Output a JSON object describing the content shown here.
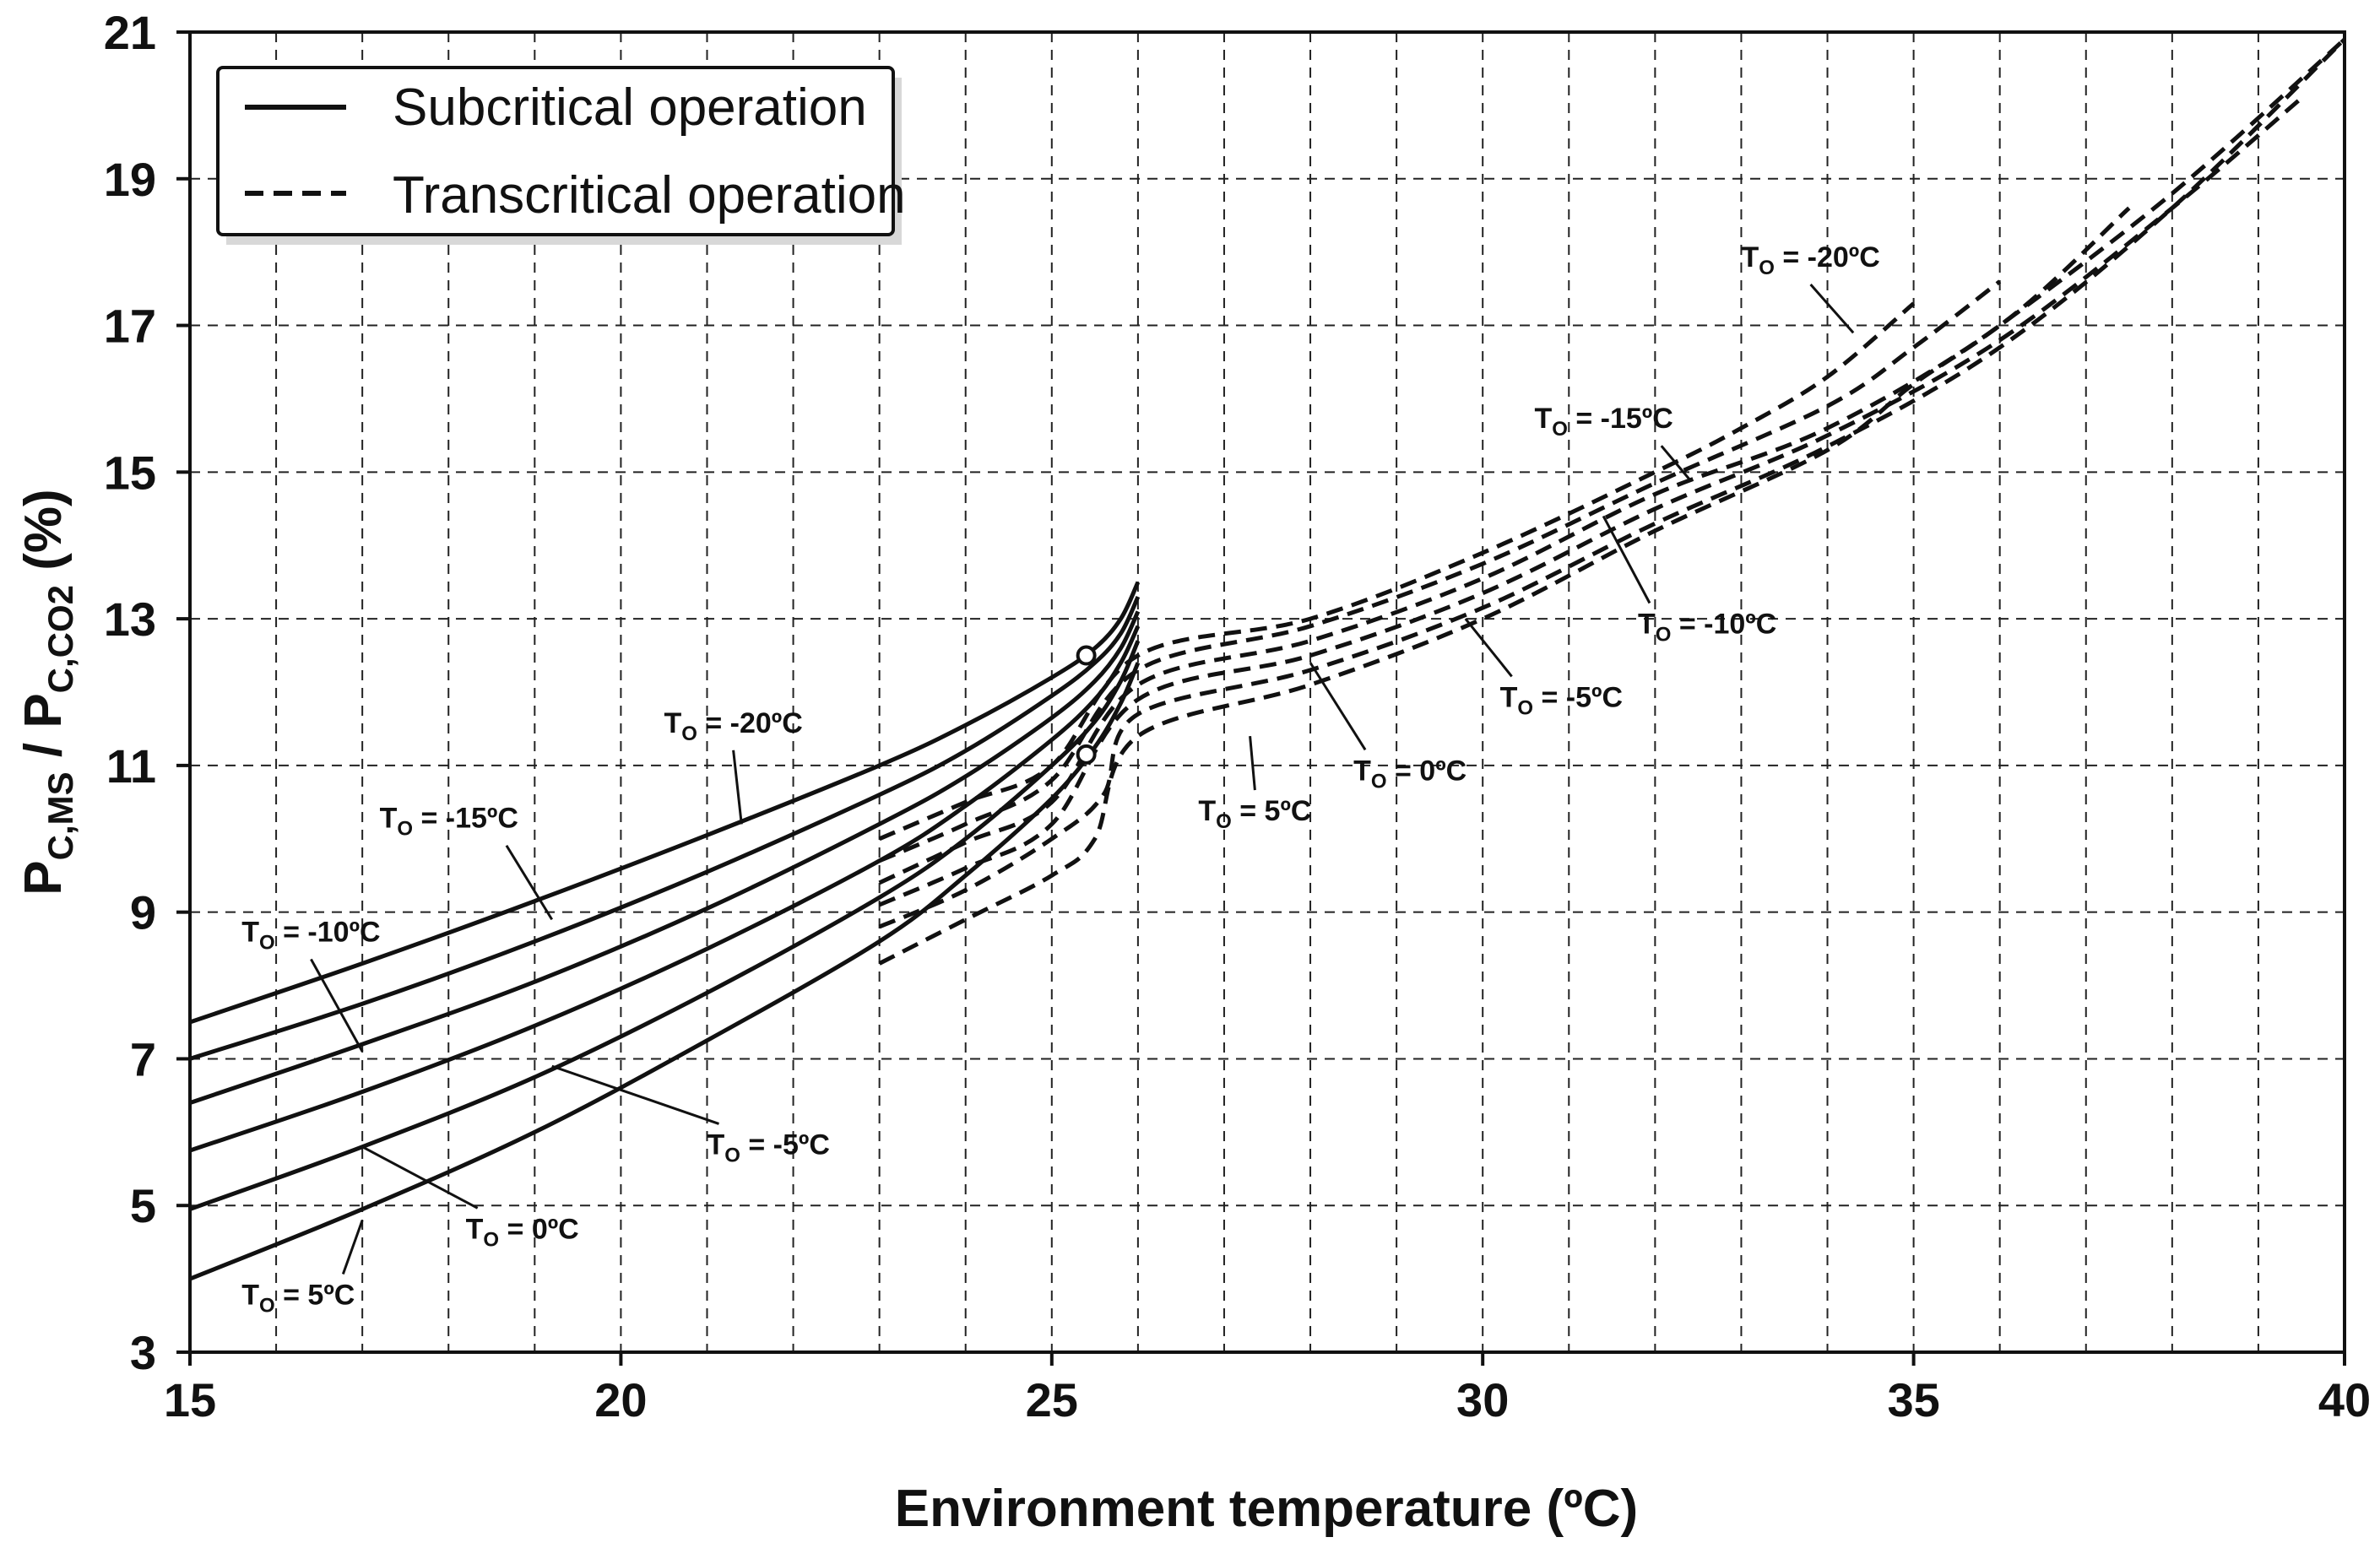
{
  "chart_data": {
    "type": "line",
    "title": "",
    "xlabel": "Environment temperature (ºC)",
    "ylabel": "P_C,MS / P_C,CO2 (%)",
    "ylabel_parts": {
      "p1": "P",
      "sub1": "C,MS",
      "mid": " / P",
      "sub2": "C,CO2",
      "unit": " (%)"
    },
    "xlim": [
      15,
      40
    ],
    "ylim": [
      3,
      21
    ],
    "xticks": [
      15,
      20,
      25,
      30,
      35,
      40
    ],
    "yticks": [
      3,
      5,
      7,
      9,
      11,
      13,
      15,
      17,
      19,
      21
    ],
    "grid": {
      "x_step": 1,
      "y_step": 2,
      "style": "dashed"
    },
    "legend": {
      "position": "top-left",
      "entries": [
        {
          "label": "Subcritical operation",
          "style": "solid"
        },
        {
          "label": "Transcritical operation",
          "style": "dashed"
        }
      ]
    },
    "series": [
      {
        "name": "Subcritical T_O = -20ºC",
        "style": "solid",
        "x": [
          15,
          17,
          19,
          21,
          23,
          24,
          25,
          25.5,
          25.8,
          26
        ],
        "y": [
          7.5,
          8.3,
          9.15,
          10.05,
          11.0,
          11.55,
          12.2,
          12.6,
          13.0,
          13.5
        ]
      },
      {
        "name": "Subcritical T_O = -15ºC",
        "style": "solid",
        "x": [
          15,
          17,
          19,
          21,
          23,
          24,
          25,
          25.5,
          25.8,
          26
        ],
        "y": [
          7.0,
          7.75,
          8.6,
          9.55,
          10.6,
          11.2,
          11.95,
          12.4,
          12.8,
          13.3
        ]
      },
      {
        "name": "Subcritical T_O = -10ºC",
        "style": "solid",
        "x": [
          15,
          17,
          19,
          21,
          23,
          24,
          25,
          25.5,
          25.8,
          26
        ],
        "y": [
          6.4,
          7.2,
          8.05,
          9.05,
          10.2,
          10.85,
          11.65,
          12.15,
          12.6,
          13.1
        ]
      },
      {
        "name": "Subcritical T_O = -5ºC",
        "style": "solid",
        "x": [
          15,
          17,
          19,
          21,
          23,
          24,
          25,
          25.5,
          25.8,
          26
        ],
        "y": [
          5.75,
          6.55,
          7.45,
          8.5,
          9.7,
          10.45,
          11.35,
          11.9,
          12.4,
          12.9
        ]
      },
      {
        "name": "Subcritical T_O = 0ºC",
        "style": "solid",
        "x": [
          15,
          17,
          19,
          21,
          23,
          24,
          25,
          25.5,
          25.8,
          26
        ],
        "y": [
          4.95,
          5.8,
          6.75,
          7.9,
          9.2,
          10.0,
          11.0,
          11.6,
          12.15,
          12.7
        ]
      },
      {
        "name": "Subcritical T_O = 5ºC",
        "style": "solid",
        "x": [
          15,
          17,
          19,
          21,
          23,
          24,
          25,
          25.5,
          25.8,
          26
        ],
        "y": [
          4.0,
          4.95,
          6.0,
          7.25,
          8.6,
          9.5,
          10.55,
          11.25,
          11.85,
          12.4
        ]
      },
      {
        "name": "Transcritical T_O = -20ºC",
        "style": "dashed",
        "x": [
          23,
          24,
          25,
          26,
          28,
          30,
          32,
          33,
          34,
          35
        ],
        "y": [
          10.0,
          10.5,
          11.0,
          12.5,
          13.0,
          13.9,
          15.0,
          15.6,
          16.3,
          17.3
        ]
      },
      {
        "name": "Transcritical T_O = -15ºC",
        "style": "dashed",
        "x": [
          23,
          24,
          25,
          26,
          28,
          30,
          32,
          34,
          35,
          36
        ],
        "y": [
          9.7,
          10.2,
          10.8,
          12.3,
          12.9,
          13.75,
          14.85,
          15.9,
          16.7,
          17.6
        ]
      },
      {
        "name": "Transcritical T_O = -10ºC",
        "style": "dashed",
        "x": [
          23,
          24,
          25,
          26,
          28,
          30,
          32,
          34,
          36,
          37.5
        ],
        "y": [
          9.4,
          9.95,
          10.5,
          12.1,
          12.7,
          13.55,
          14.7,
          15.6,
          17.0,
          18.6
        ]
      },
      {
        "name": "Transcritical T_O = -5ºC",
        "style": "dashed",
        "x": [
          23,
          24,
          25,
          26,
          28,
          30,
          32,
          34,
          36,
          38,
          39.5
        ],
        "y": [
          9.1,
          9.6,
          10.2,
          11.9,
          12.5,
          13.35,
          14.5,
          15.5,
          16.8,
          18.6,
          20.1
        ]
      },
      {
        "name": "Transcritical T_O = 0ºC",
        "style": "dashed",
        "x": [
          23,
          24,
          25,
          25.6,
          26,
          28,
          30,
          32,
          34,
          36,
          38,
          40
        ],
        "y": [
          8.8,
          9.3,
          10.0,
          10.6,
          11.7,
          12.3,
          13.15,
          14.3,
          15.35,
          16.7,
          18.6,
          20.9
        ]
      },
      {
        "name": "Transcritical T_O = 5ºC",
        "style": "dashed",
        "x": [
          23,
          24,
          25,
          25.5,
          26,
          28,
          30,
          32,
          34,
          35,
          36,
          38,
          40
        ],
        "y": [
          8.3,
          8.9,
          9.5,
          10.0,
          11.4,
          12.1,
          13.0,
          14.2,
          15.3,
          16.2,
          17.0,
          18.8,
          20.9
        ]
      }
    ],
    "markers": [
      {
        "x": 25.4,
        "y": 12.5
      },
      {
        "x": 25.4,
        "y": 11.15
      }
    ],
    "annotations": [
      {
        "text_main": "T",
        "text_sub": "O",
        "text_rest": " = -20ºC",
        "x": 20.5,
        "y": 11.45,
        "to": [
          21.4,
          10.2
        ]
      },
      {
        "text_main": "T",
        "text_sub": "O",
        "text_rest": " = -15ºC",
        "x": 17.2,
        "y": 10.15,
        "to": [
          19.2,
          8.9
        ]
      },
      {
        "text_main": "T",
        "text_sub": "O",
        "text_rest": " = -10ºC",
        "x": 15.6,
        "y": 8.6,
        "to": [
          17.0,
          7.1
        ]
      },
      {
        "text_main": "T",
        "text_sub": "O",
        "text_rest": " = -5ºC",
        "x": 21.0,
        "y": 5.7,
        "to": [
          19.2,
          6.9
        ]
      },
      {
        "text_main": "T",
        "text_sub": "O",
        "text_rest": " = 0ºC",
        "x": 18.2,
        "y": 4.55,
        "to": [
          17.0,
          5.8
        ]
      },
      {
        "text_main": "T",
        "text_sub": "O",
        "text_rest": " = 5ºC",
        "x": 15.6,
        "y": 3.65,
        "to": [
          17.0,
          4.8
        ]
      },
      {
        "text_main": "T",
        "text_sub": "O",
        "text_rest": " = 5ºC",
        "x": 26.7,
        "y": 10.25,
        "to": [
          27.3,
          11.4
        ]
      },
      {
        "text_main": "T",
        "text_sub": "O",
        "text_rest": " = 0ºC",
        "x": 28.5,
        "y": 10.8,
        "to": [
          28.0,
          12.4
        ]
      },
      {
        "text_main": "T",
        "text_sub": "O",
        "text_rest": " = -5ºC",
        "x": 30.2,
        "y": 11.8,
        "to": [
          29.8,
          13.0
        ]
      },
      {
        "text_main": "T",
        "text_sub": "O",
        "text_rest": " = -10ºC",
        "x": 31.8,
        "y": 12.8,
        "to": [
          31.4,
          14.4
        ]
      },
      {
        "text_main": "T",
        "text_sub": "O",
        "text_rest": " = -15ºC",
        "x": 30.6,
        "y": 15.6,
        "to": [
          32.4,
          14.9
        ]
      },
      {
        "text_main": "T",
        "text_sub": "O",
        "text_rest": " = -20ºC",
        "x": 33.0,
        "y": 17.8,
        "to": [
          34.3,
          16.9
        ]
      }
    ]
  }
}
